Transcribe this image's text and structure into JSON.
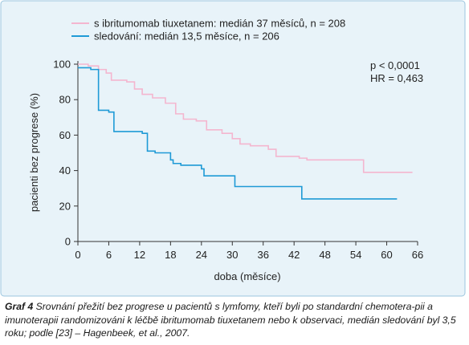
{
  "chart_data": {
    "type": "line",
    "xlabel": "doba (měsíce)",
    "ylabel": "pacienti bez progrese (%)",
    "xlim": [
      0,
      66
    ],
    "ylim": [
      0,
      100
    ],
    "xticks": [
      "0",
      "6",
      "12",
      "18",
      "24",
      "30",
      "36",
      "42",
      "48",
      "54",
      "60",
      "66"
    ],
    "yticks": [
      "0",
      "20",
      "40",
      "60",
      "80",
      "100"
    ],
    "legend_position": "top-left",
    "grid": false,
    "series": [
      {
        "name": "s ibritumomab tiuxetanem: medián 37 měsíců, n = 208",
        "color": "#f4b6cf",
        "step": true,
        "points": [
          [
            0,
            100
          ],
          [
            2,
            99
          ],
          [
            4,
            97
          ],
          [
            5.5,
            95
          ],
          [
            6.5,
            91
          ],
          [
            9.5,
            90
          ],
          [
            11,
            86
          ],
          [
            12.5,
            83
          ],
          [
            14.5,
            81
          ],
          [
            17,
            78
          ],
          [
            19,
            72
          ],
          [
            20.5,
            69
          ],
          [
            23,
            68
          ],
          [
            25,
            63
          ],
          [
            28,
            61
          ],
          [
            30,
            58
          ],
          [
            31.5,
            55
          ],
          [
            33.5,
            54
          ],
          [
            37,
            52
          ],
          [
            38.5,
            48
          ],
          [
            43,
            47
          ],
          [
            44.5,
            46
          ],
          [
            55,
            46
          ],
          [
            55.5,
            39
          ],
          [
            65,
            39
          ]
        ]
      },
      {
        "name": "sledování: medián 13,5 měsíce, n = 206",
        "color": "#1e9ad6",
        "step": true,
        "points": [
          [
            0,
            98
          ],
          [
            2.5,
            97
          ],
          [
            4,
            74
          ],
          [
            6,
            73
          ],
          [
            7,
            62
          ],
          [
            12.5,
            61
          ],
          [
            13.5,
            51
          ],
          [
            15,
            50
          ],
          [
            18,
            46
          ],
          [
            18.5,
            44
          ],
          [
            20,
            43
          ],
          [
            24,
            41
          ],
          [
            24.5,
            37
          ],
          [
            29,
            37
          ],
          [
            30.5,
            31
          ],
          [
            42.5,
            31
          ],
          [
            43.5,
            24
          ],
          [
            62,
            24
          ]
        ]
      }
    ],
    "annotations": [
      "p < 0,0001",
      "HR = 0,463"
    ]
  },
  "caption": {
    "lead": "Graf 4",
    "text": " Srovnání přežití bez progrese u pacientů s lymfomy, kteří byli po standardní chemotera-pii a imunoterapii randomizováni k léčbě ibritumomab tiuxetanem nebo k observaci, medián sledování byl 3,5 roku; podle [23] – Hagenbeek, et al., 2007."
  },
  "colors": {
    "panel_bg": "#e8f3f9",
    "panel_border": "#9cc6df",
    "axis": "#333333"
  }
}
